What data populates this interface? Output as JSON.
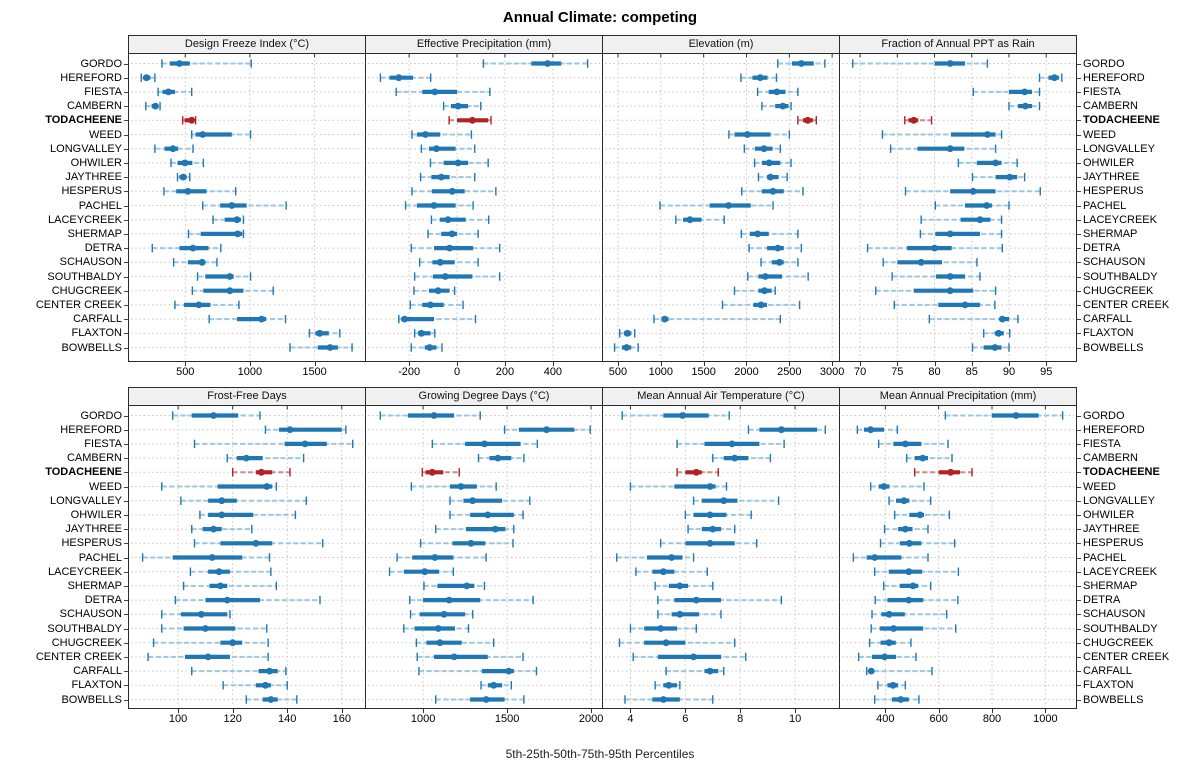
{
  "title": "Annual Climate: competing",
  "caption": "5th-25th-50th-75th-95th Percentiles",
  "highlight_station": "TODACHEENE",
  "values_order": [
    "5th",
    "25th",
    "50th",
    "75th",
    "95th"
  ],
  "stations": [
    "GORDO",
    "HEREFORD",
    "FIESTA",
    "CAMBERN",
    "TODACHEENE",
    "WEED",
    "LONGVALLEY",
    "OHWILER",
    "JAYTHREE",
    "HESPERUS",
    "PACHEL",
    "LACEYCREEK",
    "SHERMAP",
    "DETRA",
    "SCHAUSON",
    "SOUTHBALDY",
    "CHUGCREEK",
    "CENTER CREEK",
    "CARFALL",
    "FLAXTON",
    "BOWBELLS"
  ],
  "colors": {
    "series": "#1f77b4",
    "series_light": "#9dc7e0",
    "highlight": "#b22222",
    "highlight_light": "#d08a8a",
    "grid": "#c8c8c8",
    "border": "#2b2b2b",
    "panel_header_bg": "#f0f0f0"
  },
  "chart_data": [
    {
      "type": "dotplot",
      "row": "top",
      "title": "Design Freeze Index (°C)",
      "xlim": [
        65,
        1890
      ],
      "ticks": [
        500,
        1000,
        1500
      ],
      "values": [
        [
          320,
          380,
          455,
          535,
          1010
        ],
        [
          160,
          175,
          200,
          230,
          265
        ],
        [
          290,
          325,
          370,
          420,
          550
        ],
        [
          195,
          240,
          270,
          290,
          305
        ],
        [
          480,
          495,
          550,
          565,
          580
        ],
        [
          550,
          580,
          635,
          860,
          1005
        ],
        [
          265,
          340,
          405,
          445,
          560
        ],
        [
          390,
          440,
          497,
          555,
          640
        ],
        [
          440,
          455,
          485,
          510,
          535
        ],
        [
          335,
          430,
          520,
          665,
          890
        ],
        [
          635,
          770,
          860,
          975,
          1280
        ],
        [
          715,
          805,
          900,
          930,
          950
        ],
        [
          525,
          620,
          905,
          940,
          950
        ],
        [
          245,
          455,
          560,
          680,
          775
        ],
        [
          410,
          520,
          630,
          655,
          745
        ],
        [
          595,
          655,
          845,
          875,
          1005
        ],
        [
          555,
          640,
          845,
          950,
          1180
        ],
        [
          420,
          490,
          605,
          695,
          915
        ],
        [
          685,
          900,
          1090,
          1125,
          1275
        ],
        [
          1460,
          1505,
          1540,
          1610,
          1695
        ],
        [
          1310,
          1525,
          1620,
          1680,
          1790
        ]
      ]
    },
    {
      "type": "dotplot",
      "row": "top",
      "title": "Effective Precipitation (mm)",
      "xlim": [
        -380,
        605
      ],
      "ticks": [
        -200,
        0,
        200,
        400
      ],
      "values": [
        [
          110,
          310,
          378,
          435,
          545
        ],
        [
          -320,
          -282,
          -243,
          -184,
          -110
        ],
        [
          -254,
          -145,
          -93,
          0,
          137
        ],
        [
          -56,
          -26,
          4,
          46,
          99
        ],
        [
          -33,
          0,
          64,
          130,
          142
        ],
        [
          -188,
          -167,
          -132,
          -70,
          60
        ],
        [
          -149,
          -117,
          -86,
          -6,
          74
        ],
        [
          -111,
          -56,
          4,
          46,
          130
        ],
        [
          -152,
          -107,
          -66,
          -31,
          74
        ],
        [
          -188,
          -105,
          -20,
          32,
          162
        ],
        [
          -215,
          -167,
          -96,
          -6,
          67
        ],
        [
          -107,
          -72,
          -38,
          36,
          132
        ],
        [
          -121,
          -66,
          -21,
          0,
          88
        ],
        [
          -191,
          -96,
          -31,
          67,
          178
        ],
        [
          -156,
          -103,
          -70,
          -10,
          88
        ],
        [
          -177,
          -100,
          -49,
          64,
          178
        ],
        [
          -180,
          -117,
          -79,
          -31,
          -10
        ],
        [
          -195,
          -145,
          -111,
          -56,
          25
        ],
        [
          -243,
          -233,
          -219,
          -96,
          77
        ],
        [
          -177,
          -163,
          -149,
          -111,
          -93
        ],
        [
          -191,
          -135,
          -114,
          -86,
          -63
        ]
      ]
    },
    {
      "type": "dotplot",
      "row": "top",
      "title": "Elevation (m)",
      "xlim": [
        325,
        3080
      ],
      "ticks": [
        500,
        1000,
        1500,
        2000,
        2500,
        3000
      ],
      "values": [
        [
          2365,
          2530,
          2640,
          2785,
          2915
        ],
        [
          1935,
          2070,
          2160,
          2245,
          2350
        ],
        [
          2130,
          2260,
          2355,
          2455,
          2600
        ],
        [
          2180,
          2335,
          2425,
          2490,
          2520
        ],
        [
          2600,
          2660,
          2715,
          2775,
          2815
        ],
        [
          1795,
          1860,
          2010,
          2280,
          2500
        ],
        [
          1975,
          2100,
          2205,
          2305,
          2395
        ],
        [
          2095,
          2180,
          2265,
          2395,
          2520
        ],
        [
          2140,
          2240,
          2280,
          2375,
          2475
        ],
        [
          1945,
          2180,
          2310,
          2435,
          2660
        ],
        [
          990,
          1570,
          1790,
          2050,
          2310
        ],
        [
          1175,
          1260,
          1340,
          1475,
          1740
        ],
        [
          1940,
          2040,
          2130,
          2260,
          2600
        ],
        [
          2030,
          2240,
          2365,
          2435,
          2640
        ],
        [
          2170,
          2295,
          2385,
          2435,
          2600
        ],
        [
          2015,
          2140,
          2220,
          2415,
          2720
        ],
        [
          1860,
          2140,
          2210,
          2295,
          2335
        ],
        [
          1720,
          2080,
          2170,
          2240,
          2620
        ],
        [
          920,
          1010,
          1045,
          1090,
          2395
        ],
        [
          520,
          570,
          610,
          655,
          695
        ],
        [
          460,
          545,
          600,
          655,
          735
        ]
      ]
    },
    {
      "type": "dotplot",
      "row": "top",
      "title": "Fraction of Annual PPT as Rain",
      "xlim": [
        67.3,
        99
      ],
      "ticks": [
        70,
        75,
        80,
        85,
        90,
        95
      ],
      "values": [
        [
          69,
          80,
          82.1,
          84.1,
          87.1
        ],
        [
          94.1,
          95.3,
          96.1,
          96.7,
          97.1
        ],
        [
          85.2,
          90,
          92.1,
          93.1,
          94.1
        ],
        [
          90,
          91.2,
          92.2,
          93.1,
          94.1
        ],
        [
          76,
          76.5,
          77.2,
          77.8,
          79.6
        ],
        [
          73,
          82.2,
          87.1,
          88.2,
          89
        ],
        [
          74.1,
          77.7,
          82.1,
          84,
          88.2
        ],
        [
          83.2,
          85.7,
          88.2,
          89,
          91.1
        ],
        [
          85.1,
          88.2,
          90.1,
          91.1,
          92.1
        ],
        [
          76.1,
          82.1,
          85.2,
          88.2,
          94.2
        ],
        [
          80.1,
          84.1,
          87,
          87.7,
          90
        ],
        [
          78.2,
          83.5,
          86.1,
          87.5,
          89
        ],
        [
          78.1,
          80.1,
          82.1,
          86.1,
          89
        ],
        [
          71,
          76.3,
          80,
          82.3,
          89.1
        ],
        [
          73.1,
          75,
          78.2,
          81,
          85.7
        ],
        [
          74.3,
          80.2,
          82.1,
          84.1,
          86.1
        ],
        [
          72.1,
          77.2,
          82.1,
          85.2,
          88.2
        ],
        [
          74.6,
          80.5,
          84.1,
          86.1,
          88.1
        ],
        [
          79.3,
          88.8,
          89.1,
          90,
          91.2
        ],
        [
          86.6,
          88.1,
          88.6,
          89.3,
          90.1
        ],
        [
          85.1,
          86.6,
          88.1,
          89,
          90
        ]
      ]
    },
    {
      "type": "dotplot",
      "row": "bottom",
      "title": "Frost-Free Days",
      "xlim": [
        82,
        168.5
      ],
      "ticks": [
        100,
        120,
        140,
        160
      ],
      "values": [
        [
          98,
          105,
          113,
          122,
          130
        ],
        [
          132,
          137,
          141,
          160,
          161.5
        ],
        [
          106,
          139,
          146.5,
          154.5,
          164
        ],
        [
          118,
          121.5,
          125,
          131,
          146
        ],
        [
          120,
          128.5,
          130.5,
          134.5,
          141
        ],
        [
          94,
          114.5,
          132.5,
          134.5,
          136
        ],
        [
          101,
          111,
          116,
          121.5,
          147
        ],
        [
          108,
          111,
          116,
          127.5,
          143
        ],
        [
          105,
          109,
          113,
          116,
          127
        ],
        [
          106,
          115.5,
          128.5,
          134.5,
          153
        ],
        [
          87,
          98,
          112.5,
          123.5,
          133.5
        ],
        [
          104.5,
          111,
          115,
          119,
          134
        ],
        [
          102,
          111.5,
          115.5,
          118,
          136
        ],
        [
          99,
          110,
          118,
          130,
          152
        ],
        [
          94,
          101,
          108.5,
          118,
          119
        ],
        [
          94,
          102,
          110,
          121,
          132.5
        ],
        [
          91,
          115.5,
          120,
          123.5,
          133
        ],
        [
          89,
          102.5,
          111,
          119,
          133
        ],
        [
          105,
          129.5,
          133.5,
          136.5,
          139.5
        ],
        [
          116.5,
          128.5,
          132,
          134,
          140
        ],
        [
          125,
          131,
          134,
          136.5,
          143.5
        ]
      ]
    },
    {
      "type": "dotplot",
      "row": "bottom",
      "title": "Growing Degree Days (°C)",
      "xlim": [
        660,
        2065
      ],
      "ticks": [
        1000,
        1500,
        2000
      ],
      "values": [
        [
          745,
          910,
          1065,
          1185,
          1340
        ],
        [
          1485,
          1570,
          1735,
          1900,
          1995
        ],
        [
          1055,
          1250,
          1365,
          1580,
          1680
        ],
        [
          1330,
          1395,
          1445,
          1525,
          1600
        ],
        [
          995,
          1015,
          1055,
          1120,
          1215
        ],
        [
          930,
          1160,
          1225,
          1320,
          1435
        ],
        [
          1160,
          1240,
          1295,
          1470,
          1635
        ],
        [
          1160,
          1280,
          1385,
          1540,
          1595
        ],
        [
          1075,
          1255,
          1430,
          1490,
          1540
        ],
        [
          985,
          1175,
          1285,
          1370,
          1535
        ],
        [
          845,
          935,
          1070,
          1180,
          1375
        ],
        [
          800,
          885,
          1010,
          1095,
          1180
        ],
        [
          1005,
          1085,
          1260,
          1305,
          1365
        ],
        [
          920,
          1000,
          1155,
          1340,
          1655
        ],
        [
          925,
          980,
          1125,
          1250,
          1295
        ],
        [
          885,
          950,
          1090,
          1190,
          1270
        ],
        [
          960,
          1020,
          1100,
          1230,
          1420
        ],
        [
          965,
          1065,
          1185,
          1385,
          1595
        ],
        [
          975,
          1350,
          1510,
          1540,
          1675
        ],
        [
          1345,
          1385,
          1420,
          1470,
          1525
        ],
        [
          1075,
          1280,
          1375,
          1485,
          1600
        ]
      ]
    },
    {
      "type": "dotplot",
      "row": "bottom",
      "title": "Mean Annual Air Temperature (°C)",
      "xlim": [
        3.0,
        11.6
      ],
      "ticks": [
        4,
        6,
        8,
        10
      ],
      "values": [
        [
          3.7,
          5.2,
          5.9,
          6.85,
          7.6
        ],
        [
          8.3,
          8.7,
          9.5,
          10.8,
          11.1
        ],
        [
          5.7,
          6.7,
          7.7,
          8.7,
          9.6
        ],
        [
          7.0,
          7.4,
          7.8,
          8.3,
          9.1
        ],
        [
          5.7,
          6.0,
          6.4,
          6.6,
          7.2
        ],
        [
          4.0,
          5.6,
          6.9,
          7.1,
          7.5
        ],
        [
          6.3,
          6.6,
          7.4,
          7.9,
          9.4
        ],
        [
          6.0,
          6.3,
          6.9,
          7.5,
          8.4
        ],
        [
          6.1,
          6.6,
          7.0,
          7.3,
          7.8
        ],
        [
          5.1,
          6.0,
          6.9,
          7.8,
          8.6
        ],
        [
          3.5,
          4.6,
          5.5,
          5.9,
          6.3
        ],
        [
          4.2,
          4.8,
          5.2,
          5.6,
          6.8
        ],
        [
          4.9,
          5.4,
          5.8,
          6.1,
          7.0
        ],
        [
          5.0,
          5.6,
          6.4,
          7.3,
          9.5
        ],
        [
          5.0,
          5.5,
          5.8,
          6.5,
          7.3
        ],
        [
          4.0,
          4.5,
          5.1,
          5.7,
          6.4
        ],
        [
          3.6,
          4.5,
          5.3,
          6.0,
          7.8
        ],
        [
          4.1,
          5.0,
          6.3,
          7.3,
          8.2
        ],
        [
          5.3,
          6.7,
          6.9,
          7.2,
          7.4
        ],
        [
          4.9,
          5.2,
          5.4,
          5.7,
          5.8
        ],
        [
          3.8,
          4.8,
          5.2,
          5.8,
          7.0
        ]
      ]
    },
    {
      "type": "dotplot",
      "row": "bottom",
      "title": "Mean Annual Precipitation (mm)",
      "xlim": [
        230,
        1115
      ],
      "ticks": [
        400,
        600,
        800,
        1000
      ],
      "values": [
        [
          625,
          800,
          890,
          975,
          1065
        ],
        [
          295,
          320,
          345,
          395,
          445
        ],
        [
          375,
          430,
          475,
          535,
          635
        ],
        [
          480,
          510,
          540,
          560,
          650
        ],
        [
          510,
          600,
          645,
          680,
          725
        ],
        [
          345,
          375,
          395,
          415,
          545
        ],
        [
          414,
          440,
          470,
          490,
          570
        ],
        [
          435,
          490,
          530,
          545,
          640
        ],
        [
          397,
          448,
          475,
          502,
          560
        ],
        [
          382,
          455,
          490,
          535,
          660
        ],
        [
          280,
          330,
          360,
          460,
          560
        ],
        [
          360,
          413,
          488,
          538,
          674
        ],
        [
          394,
          454,
          504,
          523,
          570
        ],
        [
          362,
          408,
          488,
          542,
          672
        ],
        [
          350,
          385,
          414,
          473,
          630
        ],
        [
          347,
          379,
          431,
          542,
          664
        ],
        [
          341,
          382,
          414,
          439,
          496
        ],
        [
          300,
          350,
          397,
          440,
          515
        ],
        [
          330,
          338,
          347,
          355,
          575
        ],
        [
          372,
          408,
          429,
          448,
          475
        ],
        [
          360,
          425,
          458,
          488,
          526
        ]
      ]
    }
  ]
}
